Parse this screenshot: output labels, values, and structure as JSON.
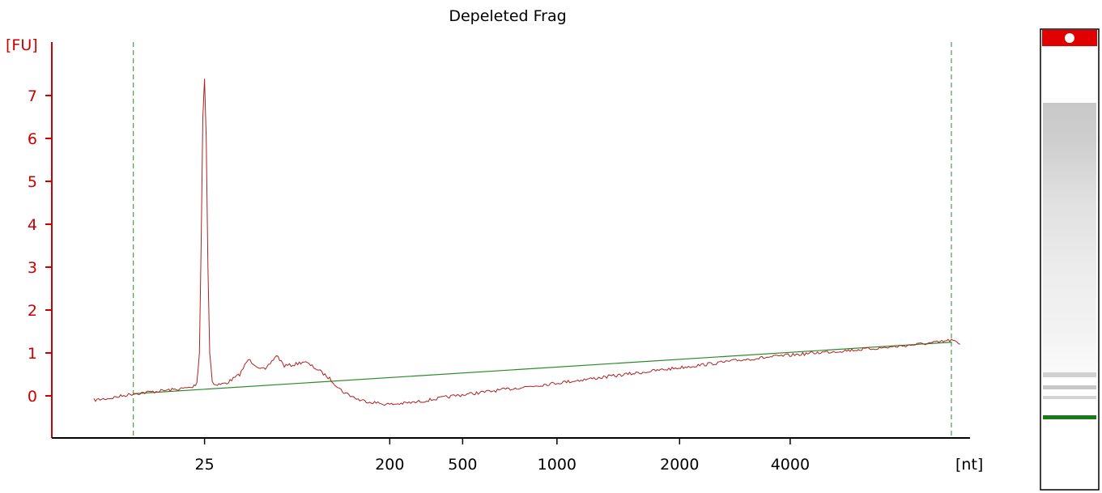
{
  "chart_data": {
    "type": "line",
    "title": "Depeleted Frag",
    "ylabel": "[FU]",
    "xlabel": "[nt]",
    "y_ticks": [
      0,
      1,
      2,
      3,
      4,
      5,
      6,
      7
    ],
    "y_tick_labels": [
      "0",
      "1",
      "2",
      "3",
      "4",
      "5",
      "6",
      "7"
    ],
    "x_tick_labels": [
      "25",
      "200",
      "500",
      "1000",
      "2000",
      "4000"
    ],
    "ylim": [
      -1,
      8.5
    ],
    "x_scale": "ladder (non-linear)",
    "colors": {
      "axis_y": "#cc0000",
      "trace": "#b02020",
      "baseline": "#2a8a2a",
      "markers": "#2a8a2a",
      "gel_marker_band": "#e00000",
      "gel_lower_marker": "#1a7a1a"
    },
    "series": [
      {
        "role": "electropherogram trace",
        "points": [
          [
            0.0,
            -0.1
          ],
          [
            0.02,
            -0.05
          ],
          [
            0.046,
            0.05
          ],
          [
            0.08,
            0.12
          ],
          [
            0.1,
            0.16
          ],
          [
            0.115,
            0.2
          ],
          [
            0.12,
            0.3
          ],
          [
            0.123,
            1.0
          ],
          [
            0.125,
            3.5
          ],
          [
            0.127,
            6.5
          ],
          [
            0.129,
            7.4
          ],
          [
            0.131,
            6.0
          ],
          [
            0.133,
            3.0
          ],
          [
            0.135,
            1.0
          ],
          [
            0.138,
            0.35
          ],
          [
            0.142,
            0.25
          ],
          [
            0.155,
            0.3
          ],
          [
            0.17,
            0.5
          ],
          [
            0.18,
            0.85
          ],
          [
            0.19,
            0.7
          ],
          [
            0.2,
            0.6
          ],
          [
            0.213,
            0.95
          ],
          [
            0.222,
            0.7
          ],
          [
            0.232,
            0.72
          ],
          [
            0.245,
            0.8
          ],
          [
            0.262,
            0.6
          ],
          [
            0.275,
            0.4
          ],
          [
            0.29,
            0.1
          ],
          [
            0.31,
            -0.1
          ],
          [
            0.335,
            -0.18
          ],
          [
            0.345,
            -0.2
          ],
          [
            0.375,
            -0.15
          ],
          [
            0.42,
            0.0
          ],
          [
            0.48,
            0.15
          ],
          [
            0.54,
            0.3
          ],
          [
            0.6,
            0.45
          ],
          [
            0.68,
            0.65
          ],
          [
            0.76,
            0.85
          ],
          [
            0.84,
            1.0
          ],
          [
            0.92,
            1.12
          ],
          [
            0.985,
            1.25
          ],
          [
            1.0,
            1.3
          ],
          [
            1.01,
            1.2
          ]
        ]
      },
      {
        "role": "baseline",
        "points": [
          [
            0.046,
            0.05
          ],
          [
            1.0,
            1.25
          ]
        ]
      }
    ],
    "x_tick_positions": [
      0.129,
      0.345,
      0.43,
      0.54,
      0.683,
      0.812
    ],
    "lower_marker_x": 0.046,
    "upper_marker_x": 1.0
  }
}
